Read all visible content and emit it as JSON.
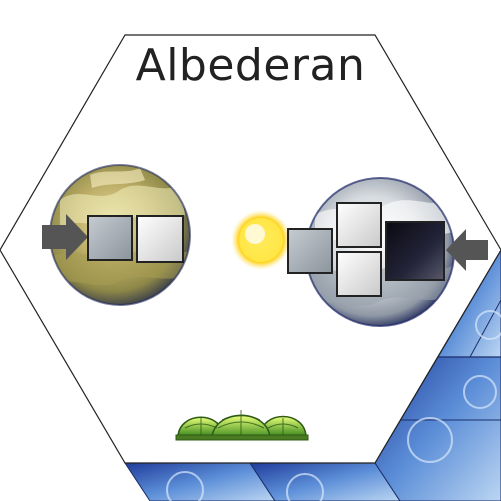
{
  "system": {
    "name": "Albederan"
  },
  "planets": [
    {
      "name": "left-planet",
      "type": "desert"
    },
    {
      "name": "right-planet",
      "type": "ice"
    }
  ],
  "star": {
    "type": "yellow"
  },
  "colors": {
    "hex_border": "#222222",
    "desert_base": "#b9a95a",
    "ice_base": "#c9cdd2",
    "space_blue": "#2a4fb5",
    "star_yellow": "#ffe24a",
    "dome_green": "#9fd13a"
  },
  "icons": [
    "arrow-in-left-icon",
    "arrow-in-right-icon",
    "star-icon",
    "dome-habitat-icon"
  ]
}
